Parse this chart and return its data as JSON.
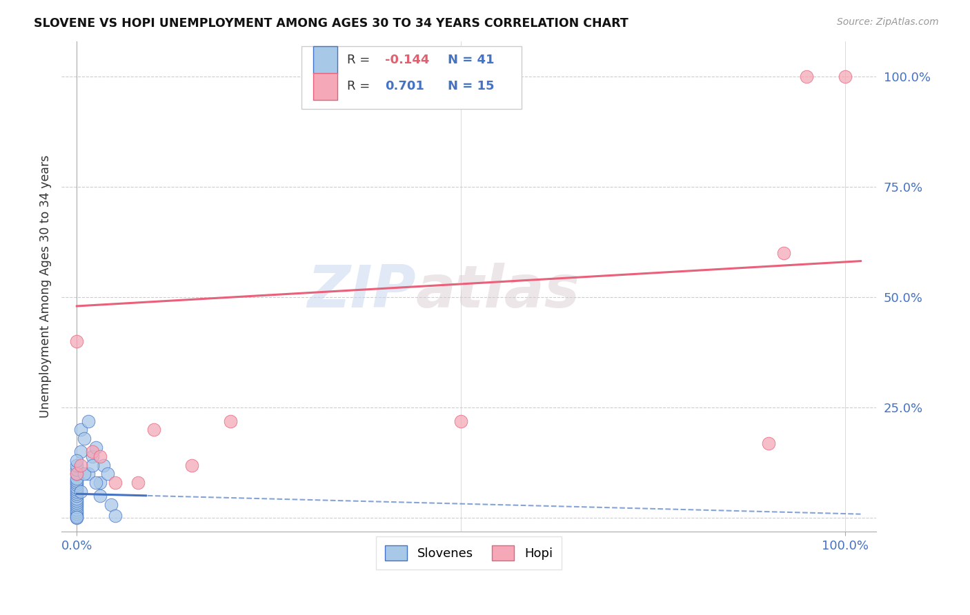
{
  "title": "SLOVENE VS HOPI UNEMPLOYMENT AMONG AGES 30 TO 34 YEARS CORRELATION CHART",
  "source": "Source: ZipAtlas.com",
  "ylabel_label": "Unemployment Among Ages 30 to 34 years",
  "slovene_R": "-0.144",
  "slovene_N": "41",
  "hopi_R": "0.701",
  "hopi_N": "15",
  "slovene_color": "#a8c8e8",
  "hopi_color": "#f4a8b8",
  "slovene_line_color": "#4472c4",
  "hopi_line_color": "#e8607a",
  "slovene_x": [
    0.0,
    0.0,
    0.0,
    0.0,
    0.0,
    0.0,
    0.0,
    0.0,
    0.0,
    0.0,
    0.0,
    0.0,
    0.0,
    0.0,
    0.0,
    0.0,
    0.0,
    0.0,
    0.0,
    0.0,
    0.5,
    0.5,
    1.0,
    1.5,
    1.5,
    2.0,
    2.5,
    3.0,
    3.5,
    4.0,
    0.0,
    0.0,
    0.0,
    0.0,
    0.5,
    1.0,
    2.0,
    2.5,
    3.0,
    4.5,
    5.0
  ],
  "slovene_y": [
    0.0,
    0.5,
    1.0,
    1.5,
    2.0,
    2.5,
    3.0,
    3.5,
    4.0,
    4.5,
    5.0,
    5.5,
    6.0,
    6.5,
    7.0,
    7.5,
    8.0,
    8.5,
    9.0,
    10.0,
    15.0,
    20.0,
    18.0,
    22.0,
    10.0,
    14.0,
    16.0,
    8.0,
    12.0,
    10.0,
    11.0,
    12.0,
    13.0,
    0.2,
    6.0,
    10.0,
    12.0,
    8.0,
    5.0,
    3.0,
    0.5
  ],
  "hopi_x": [
    0.0,
    0.0,
    0.5,
    2.0,
    3.0,
    5.0,
    10.0,
    20.0,
    50.0,
    90.0,
    92.0,
    95.0,
    100.0,
    15.0,
    8.0
  ],
  "hopi_y": [
    40.0,
    10.0,
    12.0,
    15.0,
    14.0,
    8.0,
    20.0,
    22.0,
    22.0,
    17.0,
    60.0,
    100.0,
    100.0,
    12.0,
    8.0
  ],
  "slovene_line_x0": 0.0,
  "slovene_line_y0": 5.5,
  "slovene_line_slope": -0.045,
  "slovene_solid_end": 9.0,
  "hopi_line_x0": 0.0,
  "hopi_line_y0": 48.0,
  "hopi_line_slope": 0.1,
  "xlim_min": -2,
  "xlim_max": 104,
  "ylim_min": -3,
  "ylim_max": 108,
  "ytick_values": [
    0,
    25,
    50,
    75,
    100
  ],
  "xtick_values": [
    0,
    100
  ],
  "watermark_zip": "ZIP",
  "watermark_atlas": "atlas",
  "legend_slovene": "Slovenes",
  "legend_hopi": "Hopi",
  "background_color": "#ffffff",
  "grid_color": "#cccccc",
  "marker_size": 180
}
